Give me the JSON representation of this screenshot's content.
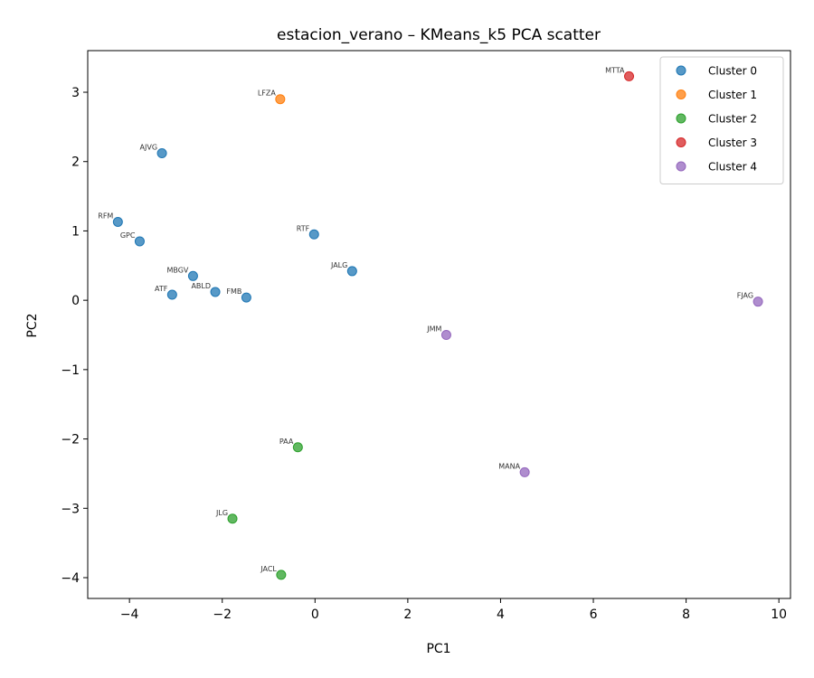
{
  "chart_data": {
    "type": "scatter",
    "title": "estacion_verano – KMeans_k5 PCA scatter",
    "xlabel": "PC1",
    "ylabel": "PC2",
    "xlim": [
      -4.9,
      10.25
    ],
    "ylim": [
      -4.3,
      3.6
    ],
    "xticks": [
      -4,
      -2,
      0,
      2,
      4,
      6,
      8,
      10
    ],
    "yticks": [
      -4,
      -3,
      -2,
      -1,
      0,
      1,
      2,
      3
    ],
    "grid": false,
    "legend_position": "top-right",
    "series": [
      {
        "name": "Cluster 0",
        "color": "#1f77b4",
        "points": [
          {
            "label": "AJVG",
            "x": -3.3,
            "y": 2.12
          },
          {
            "label": "RFM",
            "x": -4.25,
            "y": 1.13
          },
          {
            "label": "GPC",
            "x": -3.78,
            "y": 0.85
          },
          {
            "label": "MBGV",
            "x": -2.63,
            "y": 0.35
          },
          {
            "label": "ATF",
            "x": -3.08,
            "y": 0.08
          },
          {
            "label": "ABLD",
            "x": -2.15,
            "y": 0.12
          },
          {
            "label": "FMB",
            "x": -1.48,
            "y": 0.04
          },
          {
            "label": "RTF",
            "x": -0.02,
            "y": 0.95
          },
          {
            "label": "JALG",
            "x": 0.8,
            "y": 0.42
          }
        ]
      },
      {
        "name": "Cluster 1",
        "color": "#ff7f0e",
        "points": [
          {
            "label": "LFZA",
            "x": -0.75,
            "y": 2.9
          }
        ]
      },
      {
        "name": "Cluster 2",
        "color": "#2ca02c",
        "points": [
          {
            "label": "PAA",
            "x": -0.37,
            "y": -2.12
          },
          {
            "label": "JLG",
            "x": -1.78,
            "y": -3.15
          },
          {
            "label": "JACL",
            "x": -0.73,
            "y": -3.96
          }
        ]
      },
      {
        "name": "Cluster 3",
        "color": "#d62728",
        "points": [
          {
            "label": "MTTA",
            "x": 6.77,
            "y": 3.23
          }
        ]
      },
      {
        "name": "Cluster 4",
        "color": "#9467bd",
        "points": [
          {
            "label": "JMM",
            "x": 2.83,
            "y": -0.5
          },
          {
            "label": "MANA",
            "x": 4.52,
            "y": -2.48
          },
          {
            "label": "FJAG",
            "x": 9.55,
            "y": -0.02
          }
        ]
      }
    ]
  }
}
